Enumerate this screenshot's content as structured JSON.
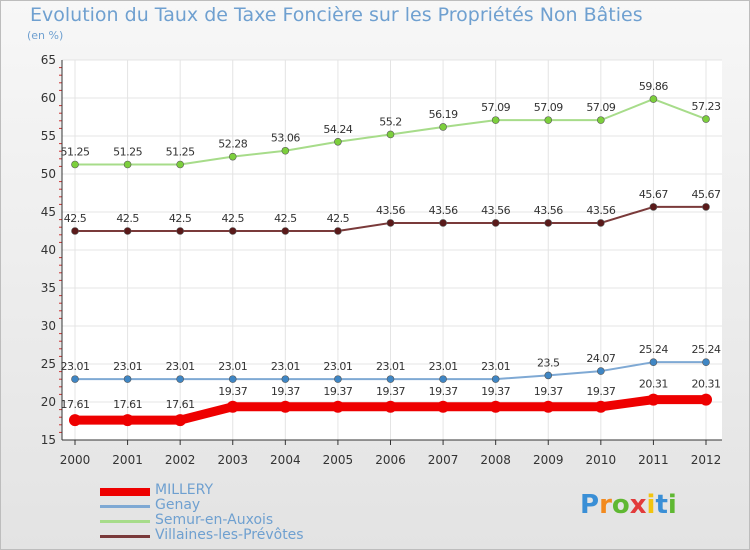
{
  "chart_data": {
    "type": "line",
    "title": "Evolution du Taux de Taxe Foncière sur les Propriétés Non Bâties",
    "ylabel": "(en %)",
    "xlabel": "",
    "x": [
      "2000",
      "2001",
      "2002",
      "2003",
      "2004",
      "2005",
      "2006",
      "2007",
      "2008",
      "2009",
      "2010",
      "2011",
      "2012"
    ],
    "ylim": [
      15,
      65
    ],
    "yticks": [
      "15",
      "20",
      "25",
      "30",
      "35",
      "40",
      "45",
      "50",
      "55",
      "60",
      "65"
    ],
    "grid": true,
    "series": [
      {
        "name": "MILLERY",
        "color": "#ee0000",
        "marker": "#ee0000",
        "values": [
          17.61,
          17.61,
          17.61,
          19.37,
          19.37,
          19.37,
          19.37,
          19.37,
          19.37,
          19.37,
          19.37,
          20.31,
          20.31
        ],
        "labels": [
          "17.61",
          "17.61",
          "17.61",
          "19.37",
          "19.37",
          "19.37",
          "19.37",
          "19.37",
          "19.37",
          "19.37",
          "19.37",
          "20.31",
          "20.31"
        ]
      },
      {
        "name": "Genay",
        "color": "#7fa9d4",
        "marker": "#3f86c4",
        "values": [
          23.01,
          23.01,
          23.01,
          23.01,
          23.01,
          23.01,
          23.01,
          23.01,
          23.01,
          23.5,
          24.07,
          25.24,
          25.24
        ],
        "labels": [
          "23.01",
          "23.01",
          "23.01",
          "23.01",
          "23.01",
          "23.01",
          "23.01",
          "23.01",
          "23.01",
          "23.5",
          "24.07",
          "25.24",
          "25.24"
        ]
      },
      {
        "name": "Semur-en-Auxois",
        "color": "#a7dc8a",
        "marker": "#7ccf3c",
        "values": [
          51.25,
          51.25,
          51.25,
          52.28,
          53.06,
          54.24,
          55.2,
          56.19,
          57.09,
          57.09,
          57.09,
          59.86,
          57.23
        ],
        "labels": [
          "51.25",
          "51.25",
          "51.25",
          "52.28",
          "53.06",
          "54.24",
          "55.2",
          "56.19",
          "57.09",
          "57.09",
          "57.09",
          "59.86",
          "57.23"
        ]
      },
      {
        "name": "Villaines-les-Prévôtes",
        "color": "#7a3a3a",
        "marker": "#5a1a1a",
        "values": [
          42.5,
          42.5,
          42.5,
          42.5,
          42.5,
          42.5,
          43.56,
          43.56,
          43.56,
          43.56,
          43.56,
          45.67,
          45.67
        ],
        "labels": [
          "42.5",
          "42.5",
          "42.5",
          "42.5",
          "42.5",
          "42.5",
          "43.56",
          "43.56",
          "43.56",
          "43.56",
          "43.56",
          "45.67",
          "45.67"
        ]
      }
    ]
  },
  "brand": {
    "text": "Proxiti"
  }
}
